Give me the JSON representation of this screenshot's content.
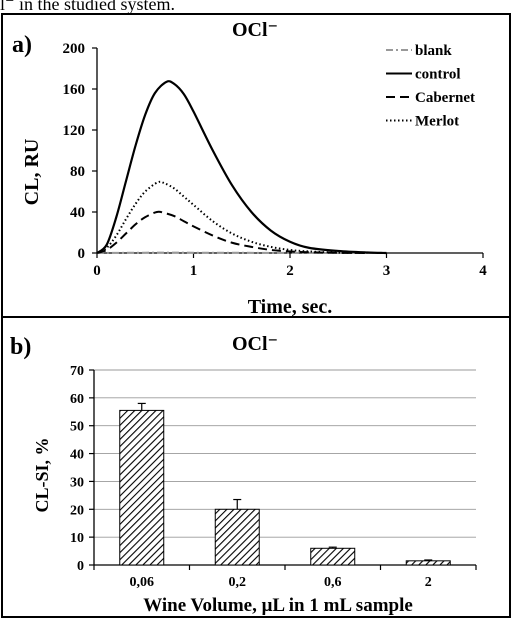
{
  "top_caption": "l⁻ in the studied system.",
  "chart_data": [
    {
      "type": "line",
      "panel_label": "a)",
      "title": "OCl⁻",
      "xlabel": "Time, sec.",
      "ylabel": "CL, RU",
      "xlim": [
        0,
        4
      ],
      "ylim": [
        0,
        200
      ],
      "x_ticks": [
        "0",
        "1",
        "2",
        "3",
        "4"
      ],
      "y_ticks": [
        "0",
        "40",
        "80",
        "120",
        "160",
        "200"
      ],
      "legend_position": "top-right",
      "series": [
        {
          "name": "blank",
          "style": "dash-dot",
          "color": "#999999",
          "x": [
            0,
            0.5,
            1,
            2,
            3
          ],
          "y": [
            0,
            0.3,
            0.3,
            0.1,
            0
          ]
        },
        {
          "name": "control",
          "style": "solid",
          "color": "#000000",
          "x": [
            0,
            0.1,
            0.2,
            0.3,
            0.4,
            0.5,
            0.6,
            0.72,
            0.8,
            0.9,
            1.0,
            1.2,
            1.4,
            1.6,
            1.8,
            2.0,
            2.2,
            2.5,
            2.8,
            3.0
          ],
          "y": [
            0,
            8,
            35,
            70,
            105,
            135,
            156,
            167,
            165,
            155,
            138,
            100,
            66,
            40,
            22,
            11,
            5,
            2,
            0.5,
            0
          ]
        },
        {
          "name": "Cabernet",
          "style": "dashed",
          "color": "#000000",
          "x": [
            0,
            0.1,
            0.2,
            0.3,
            0.4,
            0.5,
            0.62,
            0.7,
            0.8,
            0.9,
            1.0,
            1.2,
            1.4,
            1.6,
            1.8,
            2.0,
            2.2,
            2.5,
            2.8
          ],
          "y": [
            0,
            3,
            10,
            19,
            28,
            35,
            40,
            39,
            36,
            31,
            26,
            17,
            10,
            6,
            3,
            1.5,
            0.7,
            0.2,
            0
          ]
        },
        {
          "name": "Merlot",
          "style": "dotted",
          "color": "#000000",
          "x": [
            0,
            0.1,
            0.2,
            0.3,
            0.4,
            0.5,
            0.63,
            0.7,
            0.8,
            0.9,
            1.0,
            1.2,
            1.4,
            1.6,
            1.8,
            2.0,
            2.2,
            2.5,
            2.8
          ],
          "y": [
            0,
            5,
            17,
            33,
            48,
            60,
            69,
            68,
            63,
            55,
            47,
            31,
            19,
            11,
            6,
            3,
            1.5,
            0.4,
            0
          ]
        }
      ]
    },
    {
      "type": "bar",
      "panel_label": "b)",
      "title": "OCl⁻",
      "xlabel": "Wine Volume, μL in 1 mL sample",
      "ylabel": "CL-SI, %",
      "ylim": [
        0,
        70
      ],
      "y_ticks": [
        "0",
        "10",
        "20",
        "30",
        "40",
        "50",
        "60",
        "70"
      ],
      "grid": true,
      "bar_pattern": "diagonal-hatch",
      "categories": [
        "0,06",
        "0,2",
        "0,6",
        "2"
      ],
      "values": [
        55.5,
        20,
        6,
        1.5
      ],
      "errors": [
        2.5,
        3.5,
        0.4,
        0.3
      ]
    }
  ]
}
